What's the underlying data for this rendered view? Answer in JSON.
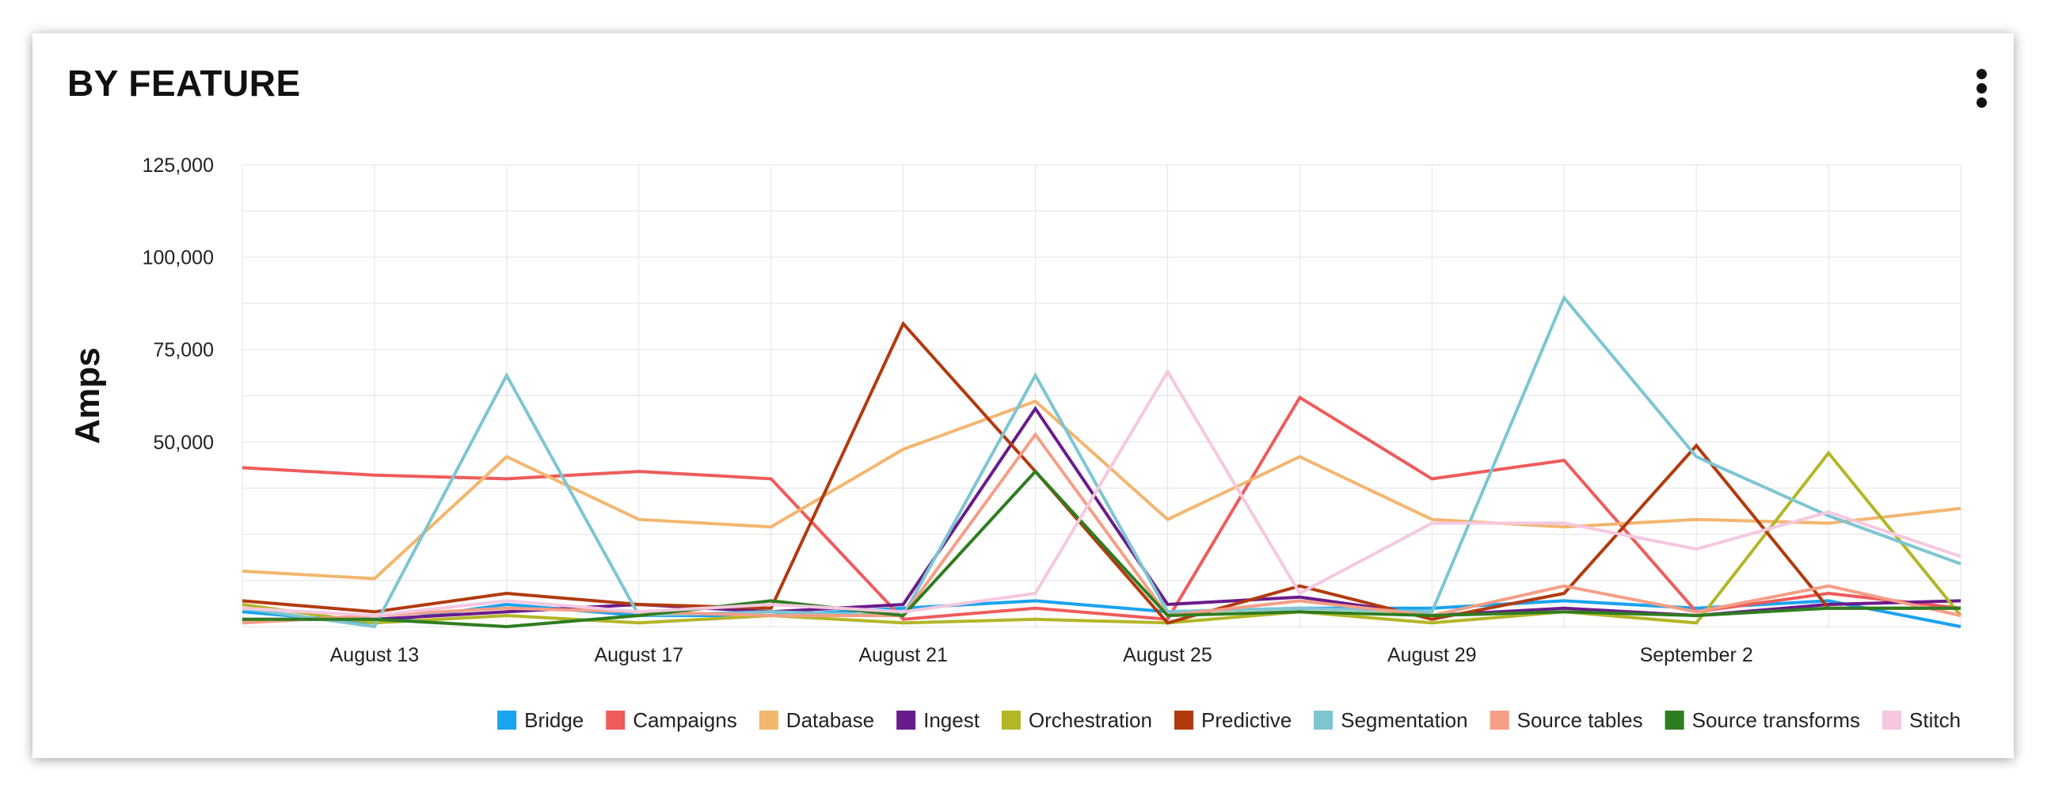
{
  "card": {
    "title": "BY FEATURE",
    "menu_icon": "more-vertical-icon"
  },
  "chart_data": {
    "type": "line",
    "title": "BY FEATURE",
    "xlabel": "",
    "ylabel": "Amps",
    "ylim": [
      0,
      125000
    ],
    "y_ticks": [
      {
        "value": 50000,
        "label": "50,000"
      },
      {
        "value": 75000,
        "label": "75,000"
      },
      {
        "value": 100000,
        "label": "100,000"
      },
      {
        "value": 125000,
        "label": "125,000"
      }
    ],
    "x": [
      "2024-08-11",
      "2024-08-13",
      "2024-08-15",
      "2024-08-17",
      "2024-08-19",
      "2024-08-21",
      "2024-08-23",
      "2024-08-25",
      "2024-08-27",
      "2024-08-29",
      "2024-08-31",
      "2024-09-02",
      "2024-09-04",
      "2024-09-06"
    ],
    "x_tick_labels": [
      {
        "value": "2024-08-13",
        "label": "August 13"
      },
      {
        "value": "2024-08-17",
        "label": "August 17"
      },
      {
        "value": "2024-08-21",
        "label": "August 21"
      },
      {
        "value": "2024-08-25",
        "label": "August 25"
      },
      {
        "value": "2024-08-29",
        "label": "August 29"
      },
      {
        "value": "2024-09-02",
        "label": "September 2"
      }
    ],
    "grid": true,
    "legend_position": "bottom-right",
    "series": [
      {
        "name": "Bridge",
        "color": "#1aa3f0",
        "values": [
          4000,
          1000,
          6000,
          3000,
          3000,
          5000,
          7000,
          4000,
          5000,
          5000,
          7000,
          5000,
          7000,
          0
        ]
      },
      {
        "name": "Campaigns",
        "color": "#ef5b5b",
        "values": [
          43000,
          41000,
          40000,
          42000,
          40000,
          2000,
          5000,
          2000,
          62000,
          40000,
          45000,
          4000,
          9000,
          5000
        ]
      },
      {
        "name": "Database",
        "color": "#f3b66f",
        "values": [
          15000,
          13000,
          46000,
          29000,
          27000,
          48000,
          61000,
          29000,
          46000,
          29000,
          27000,
          29000,
          28000,
          32000
        ]
      },
      {
        "name": "Ingest",
        "color": "#6a1b8a",
        "values": [
          2000,
          2000,
          4000,
          6000,
          4000,
          6000,
          59000,
          6000,
          8000,
          3000,
          5000,
          3000,
          6000,
          7000
        ]
      },
      {
        "name": "Orchestration",
        "color": "#b3b627",
        "values": [
          6000,
          1000,
          3000,
          1000,
          3000,
          1000,
          2000,
          1000,
          4000,
          1000,
          4000,
          1000,
          47000,
          3000
        ]
      },
      {
        "name": "Predictive",
        "color": "#b23a0e",
        "values": [
          7000,
          4000,
          9000,
          6000,
          5000,
          82000,
          42000,
          1000,
          11000,
          2000,
          9000,
          49000,
          5000,
          5000
        ]
      },
      {
        "name": "Segmentation",
        "color": "#7ec5d2",
        "values": [
          5000,
          0,
          68000,
          3000,
          4000,
          3000,
          68000,
          4000,
          5000,
          4000,
          89000,
          46000,
          30000,
          17000
        ]
      },
      {
        "name": "Source tables",
        "color": "#f59e86",
        "values": [
          1000,
          3000,
          5000,
          4000,
          3000,
          3000,
          52000,
          3000,
          7000,
          3000,
          11000,
          4000,
          11000,
          3000
        ]
      },
      {
        "name": "Source transforms",
        "color": "#2e7d20",
        "values": [
          2000,
          2000,
          0,
          3000,
          7000,
          3000,
          42000,
          3000,
          4000,
          3000,
          4000,
          3000,
          5000,
          5000
        ]
      },
      {
        "name": "Stitch",
        "color": "#f5c8e0",
        "values": [
          5000,
          3000,
          7000,
          4000,
          6000,
          4000,
          9000,
          69000,
          9000,
          28000,
          28000,
          21000,
          31000,
          19000
        ]
      }
    ]
  }
}
